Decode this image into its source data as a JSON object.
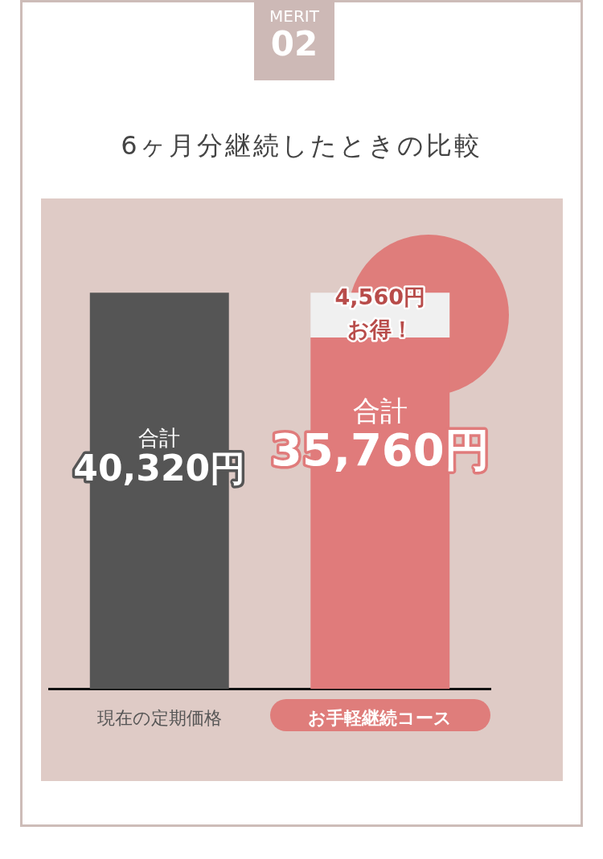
{
  "chart_data": {
    "type": "bar",
    "title": "6ヶ月分継続したときの比較",
    "annotations": [
      "MERIT",
      "02"
    ],
    "categories": [
      "現在の定期価格",
      "お手軽継続コース"
    ],
    "stacked": true,
    "grid": false,
    "legend": false,
    "tick_labels": "x",
    "series": [
      {
        "colors": [
          "#555555",
          "#e07b7b"
        ],
        "values": [
          40320,
          35760
        ],
        "value_labels": [
          "合計\n40,320円",
          "合計\n35,760円"
        ]
      },
      {
        "color": "#f0f0f0",
        "values": [
          null,
          4560
        ],
        "value_labels": [
          null,
          "4,560円お得！"
        ]
      }
    ]
  }
}
